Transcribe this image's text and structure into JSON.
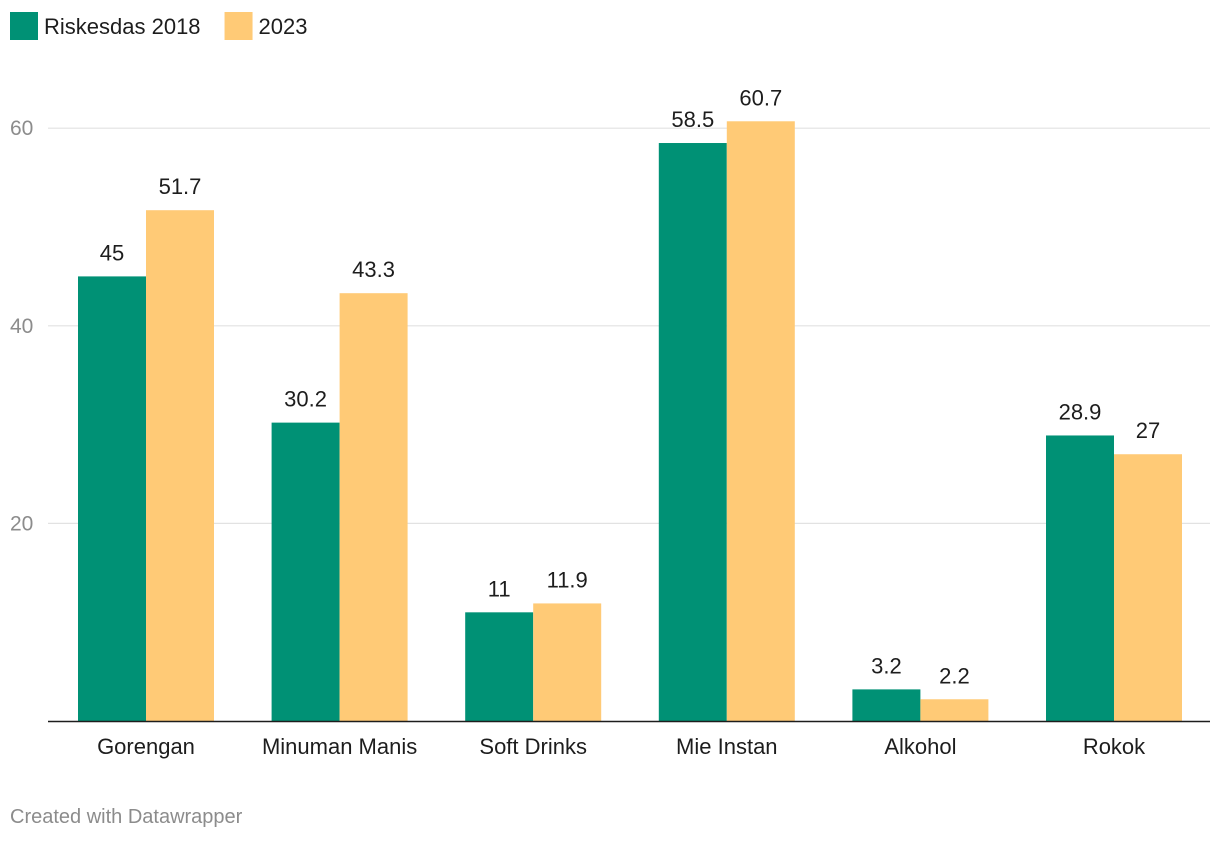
{
  "chart_data": {
    "type": "bar",
    "categories": [
      "Gorengan",
      "Minuman Manis",
      "Soft Drinks",
      "Mie Instan",
      "Alkohol",
      "Rokok"
    ],
    "series": [
      {
        "name": "Riskesdas 2018",
        "color": "#009175",
        "values": [
          45,
          30.2,
          11,
          58.5,
          3.2,
          28.9
        ],
        "labels": [
          "45",
          "30.2",
          "11",
          "58.5",
          "3.2",
          "28.9"
        ]
      },
      {
        "name": "2023",
        "color": "#ffca76",
        "values": [
          51.7,
          43.3,
          11.9,
          60.7,
          2.2,
          27
        ],
        "labels": [
          "51.7",
          "43.3",
          "11.9",
          "60.7",
          "2.2",
          "27"
        ]
      }
    ],
    "yticks": [
      20,
      40,
      60
    ],
    "ylim": [
      0,
      60
    ],
    "grid": true,
    "legend": "top-left",
    "title": "",
    "xlabel": "",
    "ylabel": ""
  },
  "footer": {
    "credit": "Created with Datawrapper"
  }
}
